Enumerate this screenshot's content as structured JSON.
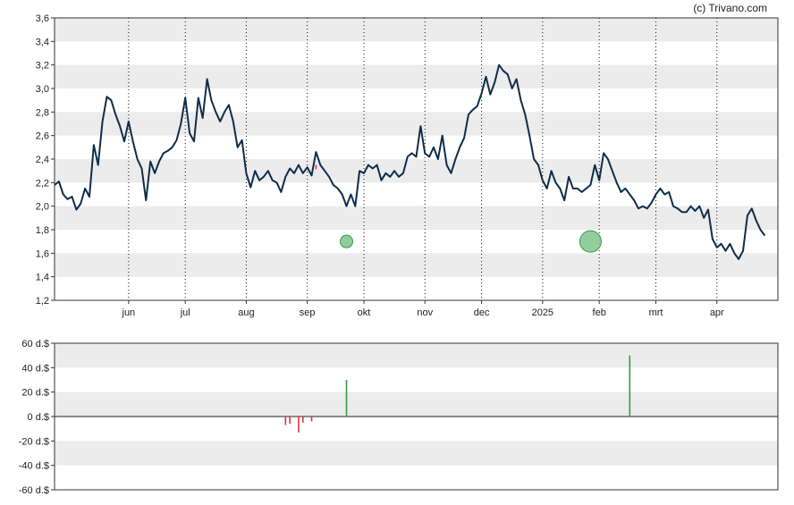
{
  "credit": "(c) Trivano.com",
  "colors": {
    "line": "#0f2d4a",
    "band": "#ececec",
    "grid": "#111111",
    "buy": "#3a9a45",
    "sell": "#e0304a",
    "bubble_fill": "#7fc48f",
    "bubble_stroke": "#3a9a45"
  },
  "chart_data": [
    {
      "type": "line",
      "title": "",
      "ylim": [
        1.2,
        3.6
      ],
      "y_ticks": [
        "1,2",
        "1,4",
        "1,6",
        "1,8",
        "2,0",
        "2,2",
        "2,4",
        "2,6",
        "2,8",
        "3,0",
        "3,2",
        "3,4",
        "3,6"
      ],
      "y_tick_values": [
        1.2,
        1.4,
        1.6,
        1.8,
        2.0,
        2.2,
        2.4,
        2.6,
        2.8,
        3.0,
        3.2,
        3.4,
        3.6
      ],
      "x_ticks": [
        {
          "label": "jun",
          "t": 17
        },
        {
          "label": "jul",
          "t": 30
        },
        {
          "label": "aug",
          "t": 44
        },
        {
          "label": "sep",
          "t": 58
        },
        {
          "label": "okt",
          "t": 71
        },
        {
          "label": "nov",
          "t": 85
        },
        {
          "label": "dec",
          "t": 98
        },
        {
          "label": "2025",
          "t": 112
        },
        {
          "label": "feb",
          "t": 125
        },
        {
          "label": "mrt",
          "t": 138
        },
        {
          "label": "apr",
          "t": 152
        }
      ],
      "x_range": [
        0,
        166
      ],
      "grid": "vertical dotted lines at month ticks, alternating horizontal bands",
      "series": [
        {
          "values": [
            [
              0,
              2.18
            ],
            [
              1,
              2.21
            ],
            [
              2,
              2.1
            ],
            [
              3,
              2.06
            ],
            [
              4,
              2.08
            ],
            [
              5,
              1.97
            ],
            [
              6,
              2.02
            ],
            [
              7,
              2.15
            ],
            [
              8,
              2.08
            ],
            [
              9,
              2.52
            ],
            [
              10,
              2.35
            ],
            [
              11,
              2.72
            ],
            [
              12,
              2.93
            ],
            [
              13,
              2.9
            ],
            [
              14,
              2.78
            ],
            [
              15,
              2.68
            ],
            [
              16,
              2.55
            ],
            [
              17,
              2.72
            ],
            [
              18,
              2.55
            ],
            [
              19,
              2.4
            ],
            [
              20,
              2.32
            ],
            [
              21,
              2.05
            ],
            [
              22,
              2.38
            ],
            [
              23,
              2.28
            ],
            [
              24,
              2.38
            ],
            [
              25,
              2.45
            ],
            [
              26,
              2.47
            ],
            [
              27,
              2.5
            ],
            [
              28,
              2.56
            ],
            [
              29,
              2.7
            ],
            [
              30,
              2.92
            ],
            [
              31,
              2.62
            ],
            [
              32,
              2.55
            ],
            [
              33,
              2.92
            ],
            [
              34,
              2.75
            ],
            [
              35,
              3.08
            ],
            [
              36,
              2.9
            ],
            [
              37,
              2.8
            ],
            [
              38,
              2.72
            ],
            [
              39,
              2.8
            ],
            [
              40,
              2.86
            ],
            [
              41,
              2.72
            ],
            [
              42,
              2.5
            ],
            [
              43,
              2.56
            ],
            [
              44,
              2.28
            ],
            [
              45,
              2.16
            ],
            [
              46,
              2.3
            ],
            [
              47,
              2.22
            ],
            [
              48,
              2.25
            ],
            [
              49,
              2.3
            ],
            [
              50,
              2.22
            ],
            [
              51,
              2.2
            ],
            [
              52,
              2.12
            ],
            [
              53,
              2.25
            ],
            [
              54,
              2.32
            ],
            [
              55,
              2.28
            ],
            [
              56,
              2.35
            ],
            [
              57,
              2.28
            ],
            [
              58,
              2.33
            ],
            [
              59,
              2.26
            ],
            [
              60,
              2.46
            ],
            [
              61,
              2.35
            ],
            [
              62,
              2.3
            ],
            [
              63,
              2.25
            ],
            [
              64,
              2.18
            ],
            [
              65,
              2.15
            ],
            [
              66,
              2.1
            ],
            [
              67,
              2.0
            ],
            [
              68,
              2.1
            ],
            [
              69,
              2.0
            ],
            [
              70,
              2.3
            ],
            [
              71,
              2.28
            ],
            [
              72,
              2.35
            ],
            [
              73,
              2.32
            ],
            [
              74,
              2.35
            ],
            [
              75,
              2.22
            ],
            [
              76,
              2.28
            ],
            [
              77,
              2.25
            ],
            [
              78,
              2.3
            ],
            [
              79,
              2.25
            ],
            [
              80,
              2.28
            ],
            [
              81,
              2.42
            ],
            [
              82,
              2.45
            ],
            [
              83,
              2.42
            ],
            [
              84,
              2.68
            ],
            [
              85,
              2.45
            ],
            [
              86,
              2.42
            ],
            [
              87,
              2.5
            ],
            [
              88,
              2.4
            ],
            [
              89,
              2.6
            ],
            [
              90,
              2.35
            ],
            [
              91,
              2.28
            ],
            [
              92,
              2.4
            ],
            [
              93,
              2.5
            ],
            [
              94,
              2.58
            ],
            [
              95,
              2.78
            ],
            [
              96,
              2.82
            ],
            [
              97,
              2.85
            ],
            [
              98,
              2.96
            ],
            [
              99,
              3.1
            ],
            [
              100,
              2.95
            ],
            [
              101,
              3.05
            ],
            [
              102,
              3.2
            ],
            [
              103,
              3.15
            ],
            [
              104,
              3.12
            ],
            [
              105,
              3.0
            ],
            [
              106,
              3.08
            ],
            [
              107,
              2.9
            ],
            [
              108,
              2.78
            ],
            [
              109,
              2.6
            ],
            [
              110,
              2.4
            ],
            [
              111,
              2.35
            ],
            [
              112,
              2.22
            ],
            [
              113,
              2.15
            ],
            [
              114,
              2.3
            ],
            [
              115,
              2.2
            ],
            [
              116,
              2.15
            ],
            [
              117,
              2.05
            ],
            [
              118,
              2.25
            ],
            [
              119,
              2.15
            ],
            [
              120,
              2.15
            ],
            [
              121,
              2.12
            ],
            [
              122,
              2.15
            ],
            [
              123,
              2.18
            ],
            [
              124,
              2.35
            ],
            [
              125,
              2.22
            ],
            [
              126,
              2.45
            ],
            [
              127,
              2.4
            ],
            [
              128,
              2.3
            ],
            [
              129,
              2.2
            ],
            [
              130,
              2.12
            ],
            [
              131,
              2.15
            ],
            [
              132,
              2.1
            ],
            [
              133,
              2.05
            ],
            [
              134,
              1.98
            ],
            [
              135,
              2.0
            ],
            [
              136,
              1.98
            ],
            [
              137,
              2.03
            ],
            [
              138,
              2.1
            ],
            [
              139,
              2.15
            ],
            [
              140,
              2.1
            ],
            [
              141,
              2.12
            ],
            [
              142,
              2.0
            ],
            [
              143,
              1.98
            ],
            [
              144,
              1.95
            ],
            [
              145,
              1.95
            ],
            [
              146,
              2.0
            ],
            [
              147,
              1.96
            ],
            [
              148,
              2.0
            ],
            [
              149,
              1.9
            ],
            [
              150,
              1.97
            ],
            [
              151,
              1.72
            ],
            [
              152,
              1.65
            ],
            [
              153,
              1.68
            ],
            [
              154,
              1.62
            ],
            [
              155,
              1.68
            ],
            [
              156,
              1.6
            ],
            [
              157,
              1.55
            ],
            [
              158,
              1.62
            ],
            [
              159,
              1.92
            ],
            [
              160,
              1.98
            ],
            [
              161,
              1.88
            ],
            [
              162,
              1.8
            ],
            [
              163,
              1.75
            ]
          ]
        }
      ],
      "markers": [
        {
          "t": 60,
          "value": 2.32,
          "kind": "small red mark"
        },
        {
          "t": 67,
          "value": 1.7,
          "kind": "bubble",
          "size": "small"
        },
        {
          "t": 123,
          "value": 1.7,
          "kind": "bubble",
          "size": "large"
        }
      ]
    },
    {
      "type": "bar",
      "title": "",
      "ylim": [
        -60,
        60
      ],
      "y_ticks": [
        "60 d.$",
        "40 d.$",
        "20 d.$",
        "0 d.$",
        "-20 d.$",
        "-40 d.$",
        "-60 d.$"
      ],
      "y_tick_values": [
        60,
        40,
        20,
        0,
        -20,
        -40,
        -60
      ],
      "x_range": [
        0,
        166
      ],
      "series": [
        {
          "name": "",
          "points": [
            {
              "t": 53,
              "value": -7
            },
            {
              "t": 54,
              "value": -6
            },
            {
              "t": 56,
              "value": -13
            },
            {
              "t": 57,
              "value": -5
            },
            {
              "t": 59,
              "value": -4
            },
            {
              "t": 67,
              "value": 30
            },
            {
              "t": 132,
              "value": 50
            }
          ]
        }
      ]
    }
  ]
}
